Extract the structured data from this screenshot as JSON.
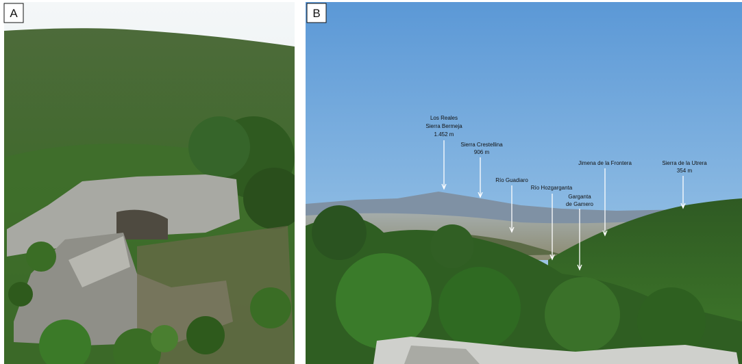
{
  "panels": [
    {
      "label": "A"
    },
    {
      "label": "B",
      "annotations": [
        {
          "lines": [
            "Los Reales",
            "Sierra Bermeja",
            "1.452 m"
          ]
        },
        {
          "lines": [
            "Sierra Crestellina",
            "906 m"
          ]
        },
        {
          "lines": [
            "Río Guadiaro"
          ]
        },
        {
          "lines": [
            "Río Hozgarganta"
          ]
        },
        {
          "lines": [
            "Garganta",
            "de Gamero"
          ]
        },
        {
          "lines": [
            "Jimena de la Frontera"
          ]
        },
        {
          "lines": [
            "Sierra de la Utrera",
            "354 m"
          ]
        }
      ]
    }
  ]
}
